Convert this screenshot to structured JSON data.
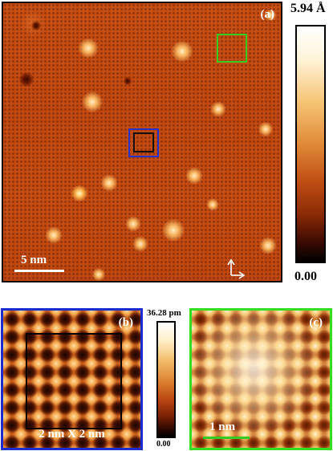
{
  "panel_a": {
    "label": "(a)",
    "scale_bar": "5 nm"
  },
  "colorbar_a": {
    "max": "5.94 Å",
    "min": "0.00"
  },
  "panel_b": {
    "label": "(b)",
    "caption": "2 nm X 2 nm"
  },
  "colorbar_b": {
    "max": "36.28 pm",
    "min": "0.00"
  },
  "panel_c": {
    "label": "(c)",
    "scale_bar": "1 nm"
  },
  "colors": {
    "green_box": "#33cc22",
    "blue_box": "#2233cc",
    "black_box": "#111111",
    "substrate": "#c64d13"
  }
}
